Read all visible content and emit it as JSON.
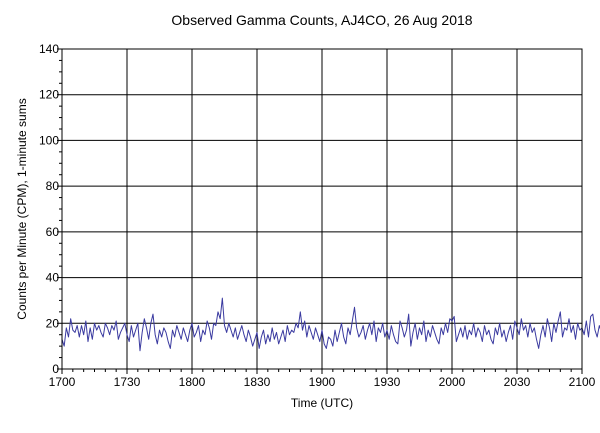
{
  "chart_data": {
    "type": "line",
    "title": "Observed Gamma Counts, AJ4CO, 26 Aug 2018",
    "xlabel": "Time (UTC)",
    "ylabel": "Counts per Minute (CPM), 1-minute sums",
    "xlim": [
      0,
      240
    ],
    "ylim": [
      0,
      140
    ],
    "x_ticks": [
      {
        "pos": 0,
        "label": "1700"
      },
      {
        "pos": 30,
        "label": "1730"
      },
      {
        "pos": 60,
        "label": "1800"
      },
      {
        "pos": 90,
        "label": "1830"
      },
      {
        "pos": 120,
        "label": "1900"
      },
      {
        "pos": 150,
        "label": "1930"
      },
      {
        "pos": 180,
        "label": "2000"
      },
      {
        "pos": 210,
        "label": "2030"
      },
      {
        "pos": 240,
        "label": "2100"
      }
    ],
    "y_ticks": [
      0,
      20,
      40,
      60,
      80,
      100,
      120,
      140
    ],
    "grid": true,
    "line_color": "#3a3aa0",
    "series": [
      {
        "values": [
          13,
          10,
          18,
          14,
          22,
          17,
          16,
          19,
          14,
          19,
          15,
          21,
          12,
          18,
          13,
          20,
          17,
          19,
          16,
          14,
          20,
          18,
          15,
          19,
          17,
          21,
          13,
          16,
          18,
          20,
          15,
          12,
          19,
          14,
          17,
          20,
          8,
          16,
          22,
          18,
          13,
          20,
          24,
          15,
          11,
          17,
          14,
          18,
          16,
          12,
          9,
          17,
          14,
          19,
          16,
          13,
          18,
          15,
          12,
          17,
          20,
          14,
          16,
          19,
          12,
          17,
          15,
          21,
          18,
          13,
          20,
          19,
          25,
          22,
          31,
          19,
          16,
          20,
          17,
          14,
          18,
          13,
          16,
          19,
          15,
          12,
          17,
          14,
          10,
          13,
          16,
          9,
          14,
          17,
          11,
          15,
          12,
          18,
          13,
          16,
          11,
          14,
          17,
          12,
          19,
          15,
          17,
          16,
          20,
          18,
          25,
          17,
          21,
          14,
          19,
          16,
          13,
          18,
          15,
          12,
          17,
          11,
          9,
          14,
          13,
          10,
          17,
          12,
          16,
          20,
          14,
          11,
          18,
          15,
          21,
          27,
          18,
          14,
          16,
          19,
          13,
          17,
          20,
          15,
          21,
          12,
          18,
          16,
          20,
          14,
          17,
          13,
          19,
          15,
          12,
          11,
          21,
          18,
          14,
          17,
          24,
          10,
          16,
          20,
          13,
          18,
          15,
          21,
          12,
          17,
          14,
          19,
          16,
          13,
          11,
          18,
          15,
          20,
          16,
          22,
          21,
          23,
          12,
          15,
          18,
          14,
          19,
          13,
          17,
          15,
          20,
          14,
          18,
          16,
          12,
          19,
          15,
          17,
          13,
          11,
          18,
          15,
          20,
          14,
          17,
          12,
          16,
          19,
          13,
          21,
          18,
          15,
          22,
          17,
          19,
          14,
          20,
          16,
          18,
          13,
          9,
          15,
          19,
          14,
          22,
          18,
          12,
          20,
          16,
          21,
          25,
          14,
          18,
          17,
          22,
          16,
          19,
          13,
          20,
          17,
          18,
          15,
          21,
          14,
          23,
          24,
          17,
          14,
          19,
          16,
          13
        ]
      }
    ]
  }
}
